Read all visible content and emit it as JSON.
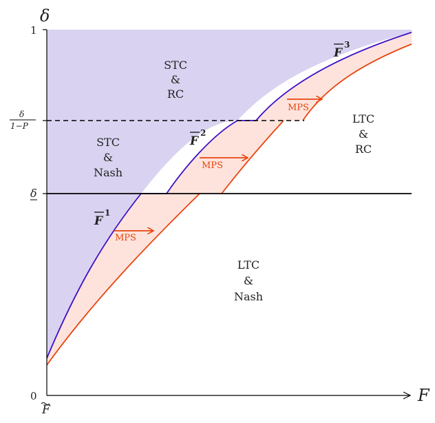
{
  "axes": {
    "x_title": "F",
    "y_title": "δ",
    "y_top_tick": "1",
    "origin_tick": "0",
    "x_origin_label": "F",
    "y_delta_tick": "δ",
    "y_ratio_num": "δ",
    "y_ratio_den": "1−P"
  },
  "regions": {
    "stc_rc": [
      "STC",
      "&",
      "RC"
    ],
    "stc_nash": [
      "STC",
      "&",
      "Nash"
    ],
    "ltc_rc": [
      "LTC",
      "&",
      "RC"
    ],
    "ltc_nash": [
      "LTC",
      "&",
      "Nash"
    ]
  },
  "curves": [
    {
      "id": "F1",
      "letter": "F",
      "sup": "1"
    },
    {
      "id": "F2",
      "letter": "F",
      "sup": "2"
    },
    {
      "id": "F3",
      "letter": "F",
      "sup": "3"
    }
  ],
  "mps_labels": [
    "MPS",
    "MPS",
    "MPS"
  ],
  "colors": {
    "blue_curve": "#3d10c4",
    "orange_curve": "#e8450f",
    "purple_fill": "#d9d3f1",
    "pink_fill": "#fde3dc",
    "axis": "#000000"
  }
}
